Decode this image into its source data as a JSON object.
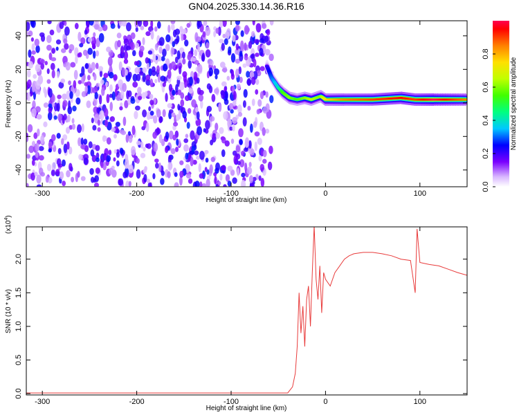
{
  "title": "GN04.2025.330.14.36.R16",
  "chart_data": [
    {
      "type": "heatmap",
      "xlabel": "Height of straight line (km)",
      "ylabel": "Frequency (Hz)",
      "xlim": [
        -317,
        150
      ],
      "ylim": [
        -50,
        49
      ],
      "x_ticks": [
        -300,
        -200,
        -100,
        0,
        100
      ],
      "x_tick_labels": [
        "-300",
        "-200",
        "-100",
        "0",
        "100"
      ],
      "y_ticks": [
        -40,
        -20,
        0,
        20,
        40
      ],
      "y_tick_labels": [
        "-40",
        "-20",
        "0",
        "20",
        "40"
      ],
      "noise_region": {
        "x_from": -317,
        "x_to": -57,
        "y_from": -50,
        "y_to": 49
      },
      "signal_ridge": [
        {
          "x": -62,
          "y": 22,
          "amp": 0.2
        },
        {
          "x": -57,
          "y": 15,
          "amp": 0.3
        },
        {
          "x": -50,
          "y": 9,
          "amp": 0.4
        },
        {
          "x": -45,
          "y": 6,
          "amp": 0.55
        },
        {
          "x": -38,
          "y": 3,
          "amp": 0.6
        },
        {
          "x": -30,
          "y": 2,
          "amp": 0.55
        },
        {
          "x": -22,
          "y": 3,
          "amp": 0.6
        },
        {
          "x": -15,
          "y": 2,
          "amp": 0.65
        },
        {
          "x": -5,
          "y": 4,
          "amp": 0.6
        },
        {
          "x": 0,
          "y": 2,
          "amp": 0.75
        },
        {
          "x": 20,
          "y": 2,
          "amp": 0.85
        },
        {
          "x": 50,
          "y": 2,
          "amp": 0.9
        },
        {
          "x": 80,
          "y": 3,
          "amp": 0.95
        },
        {
          "x": 95,
          "y": 2,
          "amp": 0.9
        },
        {
          "x": 115,
          "y": 2,
          "amp": 1.0
        },
        {
          "x": 150,
          "y": 2,
          "amp": 0.85
        }
      ],
      "colorbar": {
        "label": "Normalized spectral amplitude",
        "range": [
          0,
          1
        ],
        "ticks": [
          0.0,
          0.2,
          0.4,
          0.6,
          0.8
        ],
        "tick_labels": [
          "0.0",
          "0.2",
          "0.4",
          "0.6",
          "0.8"
        ]
      },
      "grid": false
    },
    {
      "type": "line",
      "xlabel": "Height of straight line (km)",
      "ylabel": "SNR (10 * v/v)",
      "y_multiplier": "(x10",
      "y_multiplier_exp": "4",
      "y_multiplier_close": ")",
      "xlim": [
        -317,
        150
      ],
      "ylim": [
        -0.02,
        2.48
      ],
      "x_ticks": [
        -300,
        -200,
        -100,
        0,
        100
      ],
      "x_tick_labels": [
        "-300",
        "-200",
        "-100",
        "0",
        "100"
      ],
      "y_ticks": [
        0.0,
        0.5,
        1.0,
        1.5,
        2.0
      ],
      "y_tick_labels": [
        "0.0",
        "0.5",
        "1.0",
        "1.5",
        "2.0"
      ],
      "series": [
        {
          "color": "#e83a3a",
          "x": [
            -317,
            -250,
            -200,
            -150,
            -100,
            -60,
            -40,
            -35,
            -32,
            -30,
            -28,
            -26,
            -24,
            -22,
            -20,
            -18,
            -16,
            -14,
            -12,
            -10,
            -8,
            -6,
            -4,
            -2,
            0,
            5,
            10,
            15,
            20,
            25,
            30,
            40,
            50,
            60,
            70,
            80,
            90,
            95,
            97,
            100,
            110,
            120,
            130,
            140,
            150
          ],
          "y": [
            0.01,
            0.01,
            0.01,
            0.01,
            0.01,
            0.01,
            0.01,
            0.1,
            0.3,
            0.7,
            1.5,
            0.9,
            1.3,
            0.7,
            1.4,
            1.6,
            1.0,
            1.8,
            2.5,
            1.7,
            1.4,
            1.9,
            1.2,
            1.8,
            1.7,
            1.6,
            1.8,
            1.9,
            2.0,
            2.05,
            2.08,
            2.1,
            2.1,
            2.08,
            2.05,
            2.0,
            1.98,
            1.5,
            2.45,
            1.95,
            1.92,
            1.9,
            1.85,
            1.8,
            1.76
          ]
        }
      ],
      "grid": false
    }
  ]
}
